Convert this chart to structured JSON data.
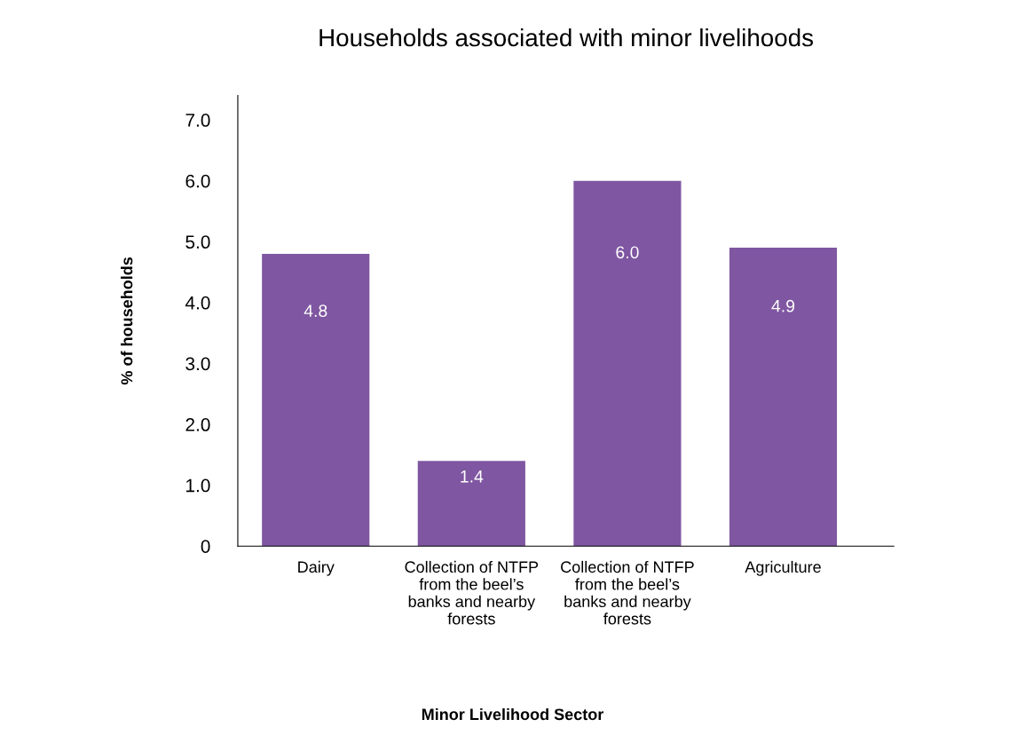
{
  "chart_data": {
    "type": "bar",
    "title": "Households associated with minor livelihoods",
    "annotations": [
      "Minor Livelihood Sector"
    ],
    "ylabel": "% of households",
    "categories": [
      "Dairy",
      "Collection of NTFP\nfrom the beel’s\nbanks and nearby\nforests",
      "Collection of NTFP\nfrom the beel’s\nbanks and nearby\nforests",
      "Agriculture"
    ],
    "values": [
      4.8,
      1.4,
      6.0,
      4.9
    ],
    "color": "#7f56a1",
    "value_labels": [
      "4.8",
      "1.4",
      "6.0",
      "4.9"
    ],
    "ylim": [
      0,
      7.4
    ],
    "yticks": [
      0,
      {
        "value": 1,
        "label": "1.0"
      },
      {
        "value": 2,
        "label": "2.0"
      },
      {
        "value": 3,
        "label": "3.0"
      },
      {
        "value": 4,
        "label": "4.0"
      },
      {
        "value": 5,
        "label": "5.0"
      },
      {
        "value": 6,
        "label": "6.0"
      },
      {
        "value": 7,
        "label": "7.0"
      }
    ],
    "grid": false,
    "legend": false
  }
}
